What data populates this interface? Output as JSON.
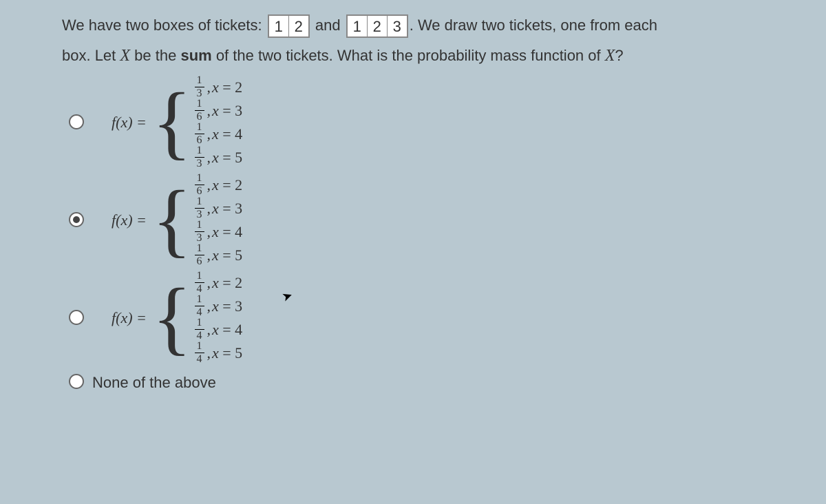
{
  "question": {
    "line1_pre": "We have two boxes of tickets:",
    "box1": [
      "1",
      "2"
    ],
    "mid": "and",
    "box2": [
      "1",
      "2",
      "3"
    ],
    "line1_post": ". We draw two tickets, one from each",
    "line2_pre": "box. Let ",
    "var": "X",
    "line2_mid": " be the ",
    "bold": "sum",
    "line2_post": " of the two tickets. What is the probability mass function of ",
    "var2": "X",
    "line2_end": "?"
  },
  "options": [
    {
      "type": "pmf",
      "selected": false,
      "label": "f(x) =",
      "cases": [
        {
          "num": "1",
          "den": "3",
          "cond": "x = 2"
        },
        {
          "num": "1",
          "den": "6",
          "cond": "x = 3"
        },
        {
          "num": "1",
          "den": "6",
          "cond": "x = 4"
        },
        {
          "num": "1",
          "den": "3",
          "cond": "x = 5"
        }
      ]
    },
    {
      "type": "pmf",
      "selected": true,
      "label": "f(x) =",
      "cases": [
        {
          "num": "1",
          "den": "6",
          "cond": "x = 2"
        },
        {
          "num": "1",
          "den": "3",
          "cond": "x = 3"
        },
        {
          "num": "1",
          "den": "3",
          "cond": "x = 4"
        },
        {
          "num": "1",
          "den": "6",
          "cond": "x = 5"
        }
      ]
    },
    {
      "type": "pmf",
      "selected": false,
      "label": "f(x) =",
      "cases": [
        {
          "num": "1",
          "den": "4",
          "cond": "x = 2"
        },
        {
          "num": "1",
          "den": "4",
          "cond": "x = 3"
        },
        {
          "num": "1",
          "den": "4",
          "cond": "x = 4"
        },
        {
          "num": "1",
          "den": "4",
          "cond": "x = 5"
        }
      ]
    },
    {
      "type": "text",
      "selected": false,
      "text": "None of the above"
    }
  ],
  "colors": {
    "background": "#b8c8d0",
    "text": "#333333",
    "ticket_border": "#888888",
    "ticket_bg": "#ffffff"
  }
}
